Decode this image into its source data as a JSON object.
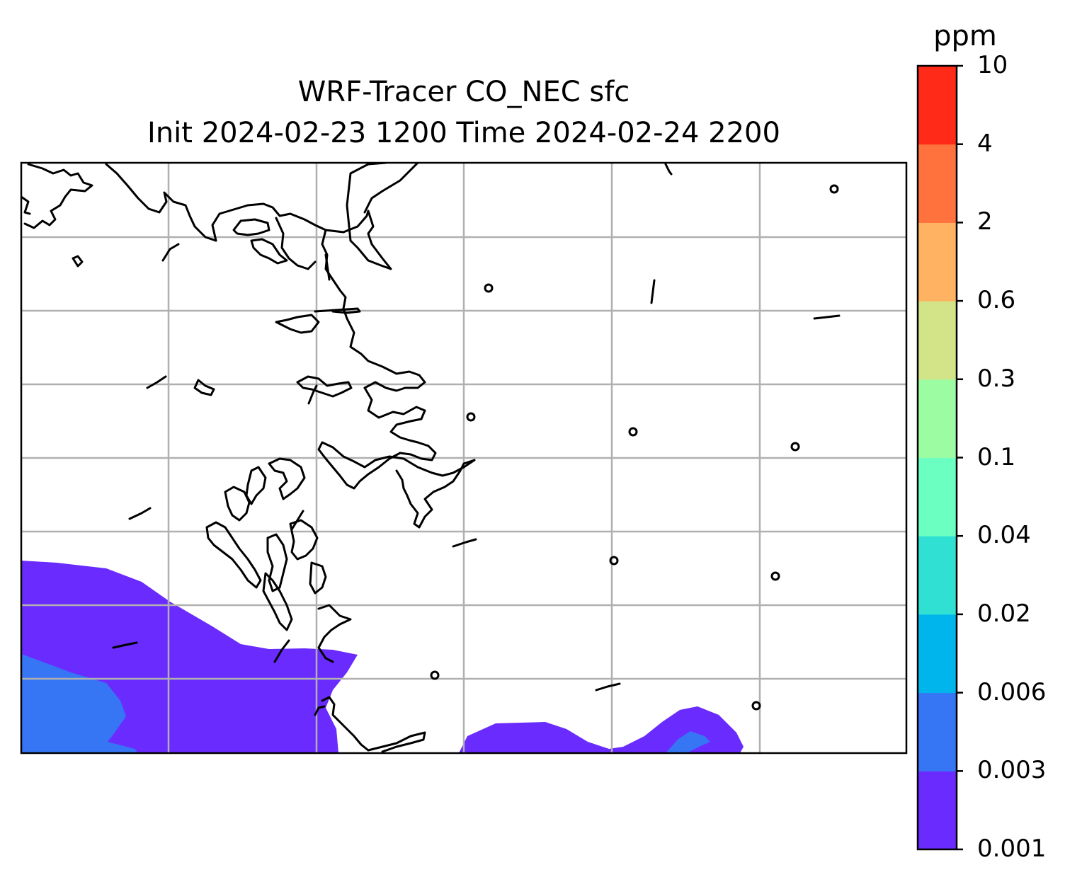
{
  "title": {
    "line1": "WRF-Tracer CO_NEC sfc",
    "line2": "Init 2024-02-23 1200 Time 2024-02-24 2200"
  },
  "colorbar": {
    "unit": "ppm",
    "levels": [
      "0.001",
      "0.003",
      "0.006",
      "0.02",
      "0.04",
      "0.1",
      "0.3",
      "0.6",
      "2",
      "4",
      "10"
    ],
    "colors": [
      "#6a2bff",
      "#3676f5",
      "#00b4ec",
      "#2fe0d3",
      "#6cffc2",
      "#9bfca1",
      "#d2e388",
      "#ffb261",
      "#ff713d",
      "#ff2a18"
    ]
  },
  "map": {
    "fill_colors": {
      "level1": "#6a2bff",
      "level2": "#3676f5"
    },
    "coastline_color": "#000000",
    "gridline_color": "#b0b0b0"
  }
}
